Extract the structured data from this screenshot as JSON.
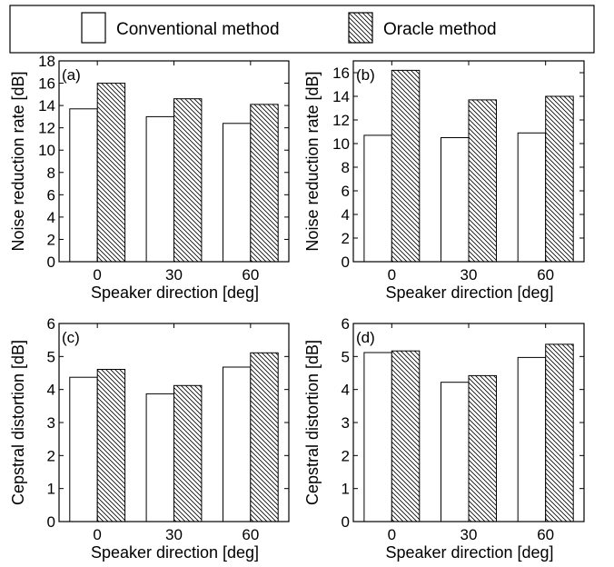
{
  "legend": {
    "placement": "top, full width",
    "entries": [
      {
        "label": "Conventional method",
        "pattern": "white"
      },
      {
        "label": "Oracle method",
        "pattern": "diagonal-hatch"
      }
    ]
  },
  "colors": {
    "conventional_fill": "#ffffff",
    "oracle_hatch": "#000000",
    "axis": "#000000",
    "background": "#ffffff"
  },
  "chart_data": [
    {
      "type": "bar",
      "panel_label": "(a)",
      "categories": [
        "0",
        "30",
        "60"
      ],
      "xlabel": "Speaker direction [deg]",
      "ylabel": "Noise reduction rate [dB]",
      "ylim": [
        0,
        18
      ],
      "yticks": [
        0,
        2,
        4,
        6,
        8,
        10,
        12,
        14,
        16,
        18
      ],
      "grid": false,
      "series": [
        {
          "name": "Conventional method",
          "values": [
            13.7,
            13.0,
            12.4
          ]
        },
        {
          "name": "Oracle method",
          "values": [
            16.0,
            14.6,
            14.1
          ]
        }
      ]
    },
    {
      "type": "bar",
      "panel_label": "(b)",
      "categories": [
        "0",
        "30",
        "60"
      ],
      "xlabel": "Speaker direction [deg]",
      "ylabel": "Noise reduction rate [dB]",
      "ylim": [
        0,
        17
      ],
      "yticks": [
        0,
        2,
        4,
        6,
        8,
        10,
        12,
        14,
        16
      ],
      "grid": false,
      "series": [
        {
          "name": "Conventional method",
          "values": [
            10.7,
            10.5,
            10.9
          ]
        },
        {
          "name": "Oracle method",
          "values": [
            16.2,
            13.7,
            14.0
          ]
        }
      ]
    },
    {
      "type": "bar",
      "panel_label": "(c)",
      "categories": [
        "0",
        "30",
        "60"
      ],
      "xlabel": "Speaker direction [deg]",
      "ylabel": "Cepstral distortion [dB]",
      "ylim": [
        0,
        6
      ],
      "yticks": [
        0,
        1,
        2,
        3,
        4,
        5,
        6
      ],
      "grid": false,
      "series": [
        {
          "name": "Conventional method",
          "values": [
            4.37,
            3.87,
            4.68
          ]
        },
        {
          "name": "Oracle method",
          "values": [
            4.61,
            4.12,
            5.11
          ]
        }
      ]
    },
    {
      "type": "bar",
      "panel_label": "(d)",
      "categories": [
        "0",
        "30",
        "60"
      ],
      "xlabel": "Speaker direction [deg]",
      "ylabel": "Cepstral distortion [dB]",
      "ylim": [
        0,
        6
      ],
      "yticks": [
        0,
        1,
        2,
        3,
        4,
        5,
        6
      ],
      "grid": false,
      "series": [
        {
          "name": "Conventional method",
          "values": [
            5.12,
            4.22,
            4.97
          ]
        },
        {
          "name": "Oracle method",
          "values": [
            5.17,
            4.42,
            5.37
          ]
        }
      ]
    }
  ]
}
